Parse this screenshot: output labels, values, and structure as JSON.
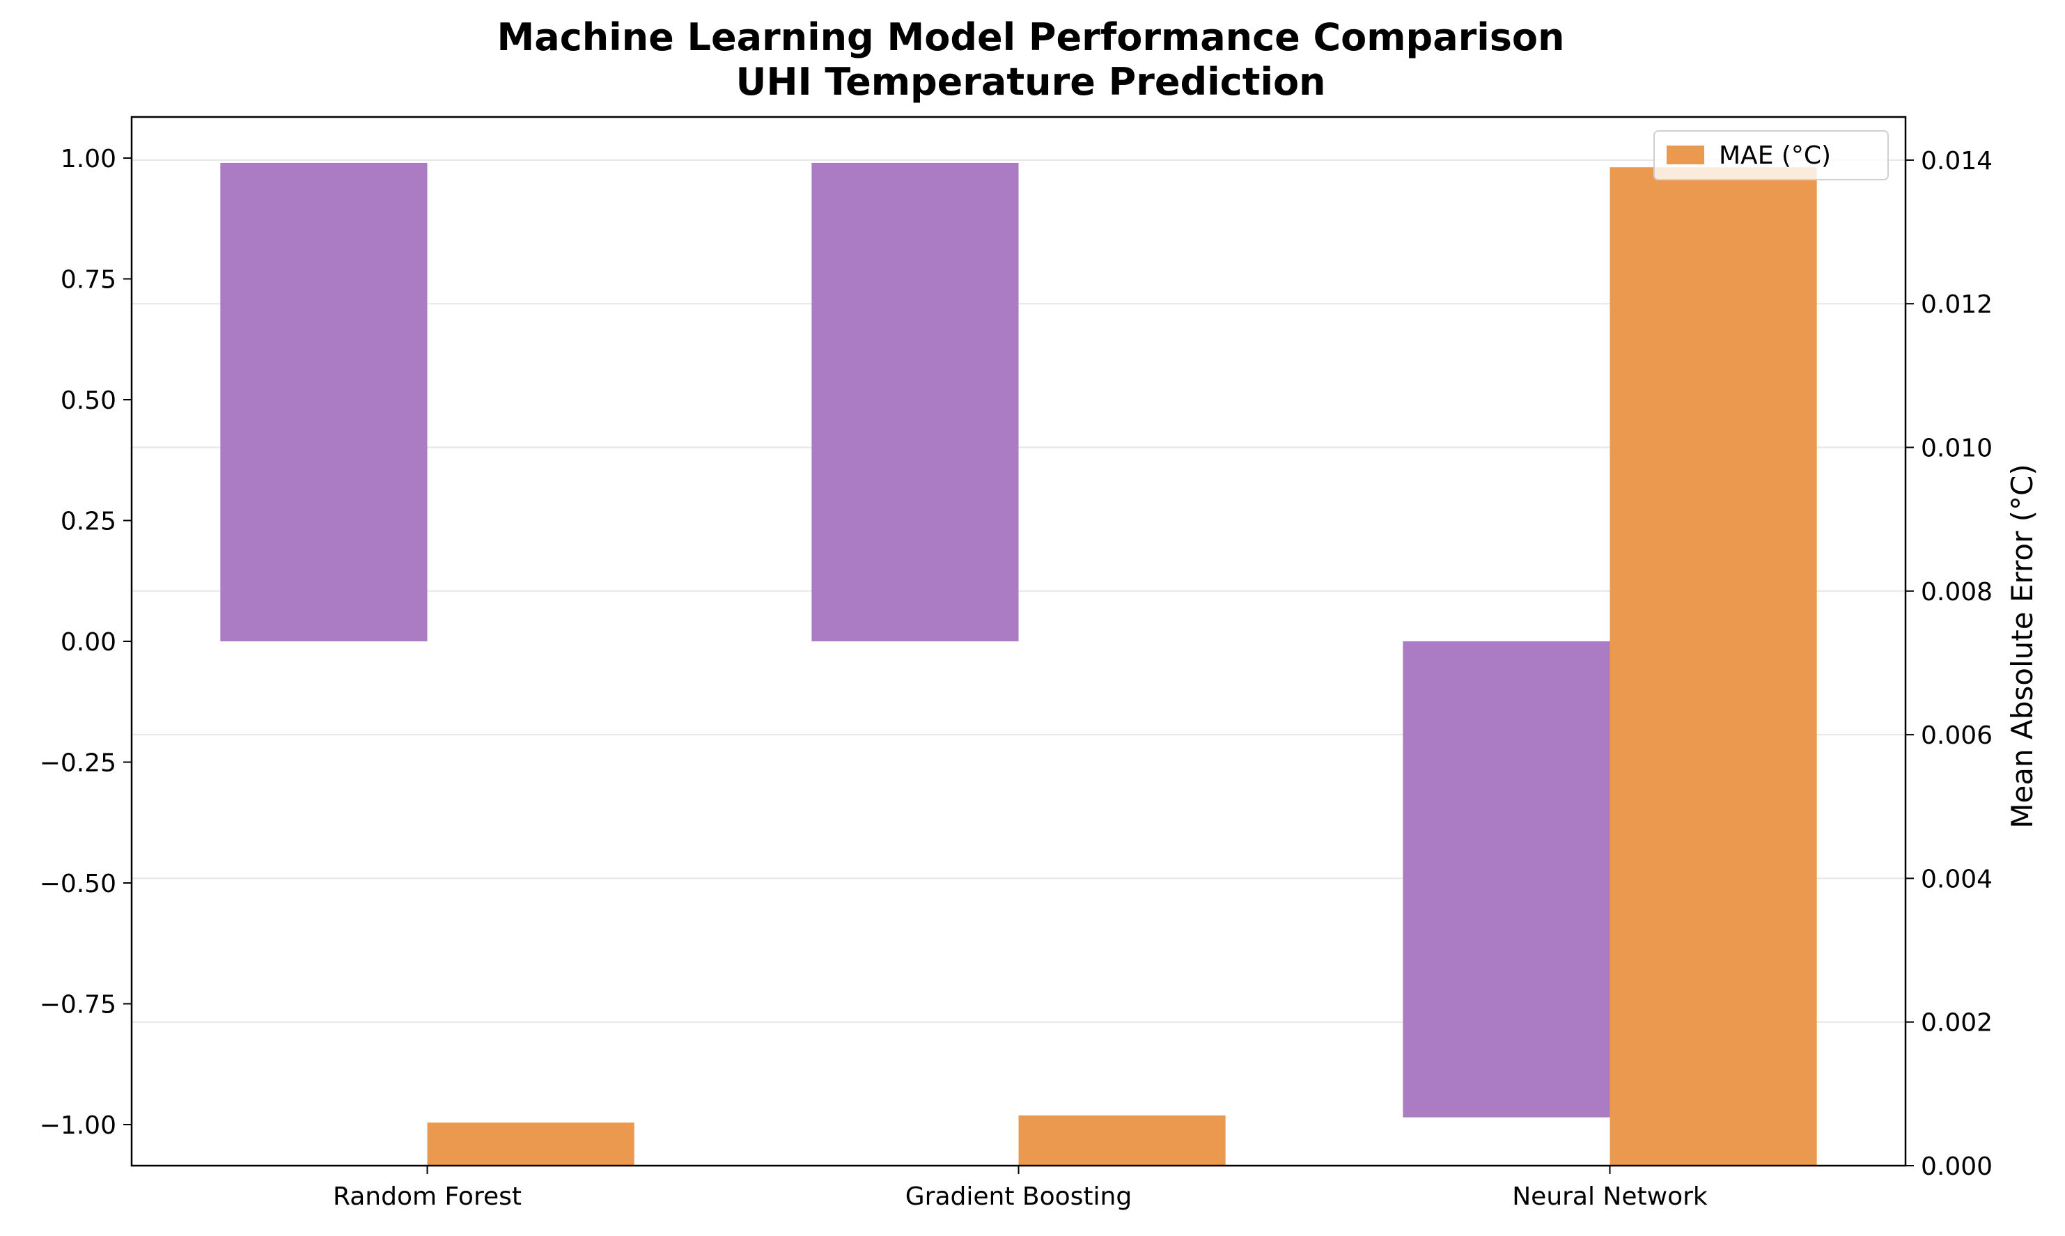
{
  "chart_data": {
    "type": "bar",
    "title_lines": [
      "Machine Learning Model Performance Comparison",
      "UHI Temperature Prediction"
    ],
    "categories": [
      "Random Forest",
      "Gradient Boosting",
      "Neural Network"
    ],
    "series": [
      {
        "axis": "left",
        "color": "#ab7bc4",
        "values": [
          0.99,
          0.99,
          -0.985
        ]
      },
      {
        "name": "MAE (°C)",
        "axis": "right",
        "color": "#eb994f",
        "values": [
          0.0006,
          0.0007,
          0.0139
        ]
      }
    ],
    "left_axis": {
      "label": "",
      "ylim": [
        -1.085,
        1.085
      ],
      "ticks": [
        1.0,
        0.75,
        0.5,
        0.25,
        0.0,
        -0.25,
        -0.5,
        -0.75,
        -1.0
      ],
      "tick_labels": [
        "1.00",
        "0.75",
        "0.50",
        "0.25",
        "0.00",
        "−0.25",
        "−0.50",
        "−0.75",
        "−1.00"
      ]
    },
    "right_axis": {
      "label": "Mean Absolute Error (°C)",
      "ylim": [
        0,
        0.0146
      ],
      "ticks": [
        0.0,
        0.002,
        0.004,
        0.006,
        0.008,
        0.01,
        0.012,
        0.014
      ],
      "tick_labels": [
        "0.000",
        "0.002",
        "0.004",
        "0.006",
        "0.008",
        "0.010",
        "0.012",
        "0.014"
      ]
    },
    "grid": "horizontal, right axis",
    "legend": {
      "placement": "top-right",
      "entries": [
        "MAE (°C)"
      ]
    }
  }
}
